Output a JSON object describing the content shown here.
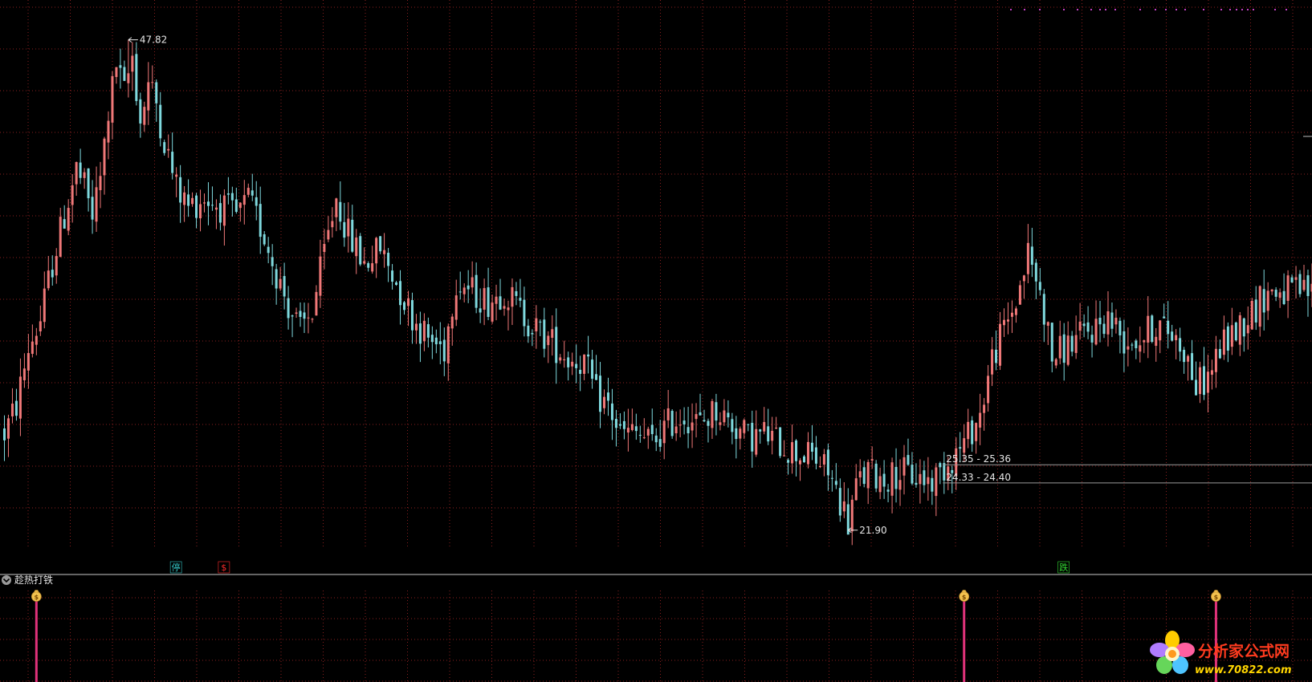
{
  "indicator": {
    "name": "趁热打铁"
  },
  "annotations": {
    "high_label": "47.82",
    "low_label": "21.90",
    "level_upper": "25.35 - 25.36",
    "level_lower": "24.33 - 24.40"
  },
  "signal_tags": [
    {
      "text": "停",
      "color": "#33c6c6",
      "index": 43
    },
    {
      "text": "$",
      "color": "#ff2b2b",
      "index": 55
    },
    {
      "text": "跌",
      "color": "#33dd33",
      "index": 265
    }
  ],
  "signal_icons": [
    "money-bag-icon",
    "money-bag-icon",
    "money-bag-icon"
  ],
  "watermark": {
    "name": "分析家公式网",
    "url": "www.70822.com"
  },
  "colors": {
    "up": "#f07878",
    "down": "#7fd9de",
    "grid": "#8a1f1f",
    "signal_line": "#e0327a",
    "annotation_line": "#9a9a9a"
  },
  "chart_data": {
    "type": "candlestick",
    "series_note": "",
    "ylim": [
      21.0,
      49.5
    ],
    "start": 27.2,
    "anchors": [
      [
        0,
        27.0
      ],
      [
        3,
        28.5
      ],
      [
        6,
        31.5
      ],
      [
        9,
        33.0
      ],
      [
        12,
        36.0
      ],
      [
        15,
        38.5
      ],
      [
        18,
        41.0
      ],
      [
        20,
        40.0
      ],
      [
        22,
        38.5
      ],
      [
        24,
        40.5
      ],
      [
        26,
        44.0
      ],
      [
        28,
        46.5
      ],
      [
        30,
        45.0
      ],
      [
        32,
        47.0
      ],
      [
        34,
        43.5
      ],
      [
        36,
        45.5
      ],
      [
        38,
        44.5
      ],
      [
        40,
        42.5
      ],
      [
        43,
        40.0
      ],
      [
        46,
        39.0
      ],
      [
        50,
        39.5
      ],
      [
        54,
        39.0
      ],
      [
        58,
        38.5
      ],
      [
        61,
        39.3
      ],
      [
        65,
        37.5
      ],
      [
        68,
        35.5
      ],
      [
        71,
        33.8
      ],
      [
        74,
        32.4
      ],
      [
        77,
        33.5
      ],
      [
        80,
        36.5
      ],
      [
        83,
        39.5
      ],
      [
        86,
        37.5
      ],
      [
        90,
        36.0
      ],
      [
        94,
        36.8
      ],
      [
        98,
        35.0
      ],
      [
        102,
        33.2
      ],
      [
        106,
        32.0
      ],
      [
        110,
        31.5
      ],
      [
        113,
        35.2
      ],
      [
        117,
        34.5
      ],
      [
        121,
        34.0
      ],
      [
        125,
        34.6
      ],
      [
        129,
        33.5
      ],
      [
        133,
        32.5
      ],
      [
        137,
        31.8
      ],
      [
        141,
        31.0
      ],
      [
        145,
        30.8
      ],
      [
        148,
        29.0
      ],
      [
        151,
        28.5
      ],
      [
        154,
        27.0
      ],
      [
        158,
        27.0
      ],
      [
        162,
        26.5
      ],
      [
        166,
        27.5
      ],
      [
        170,
        28.0
      ],
      [
        174,
        27.5
      ],
      [
        178,
        28.3
      ],
      [
        182,
        27.5
      ],
      [
        186,
        26.8
      ],
      [
        190,
        27.0
      ],
      [
        194,
        26.5
      ],
      [
        198,
        26.0
      ],
      [
        202,
        25.8
      ],
      [
        206,
        25.0
      ],
      [
        209,
        23.5
      ],
      [
        211,
        22.3
      ],
      [
        213,
        24.2
      ],
      [
        216,
        25.0
      ],
      [
        220,
        24.6
      ],
      [
        224,
        25.0
      ],
      [
        228,
        24.7
      ],
      [
        232,
        24.5
      ],
      [
        236,
        25.5
      ],
      [
        240,
        26.5
      ],
      [
        244,
        28.0
      ],
      [
        247,
        31.0
      ],
      [
        250,
        32.5
      ],
      [
        253,
        34.0
      ],
      [
        256,
        36.5
      ],
      [
        258,
        35.2
      ],
      [
        260,
        33.5
      ],
      [
        262,
        31.0
      ],
      [
        265,
        31.5
      ],
      [
        268,
        32.0
      ],
      [
        272,
        32.5
      ],
      [
        276,
        33.2
      ],
      [
        280,
        32.0
      ],
      [
        284,
        32.0
      ],
      [
        288,
        32.8
      ],
      [
        292,
        32.3
      ],
      [
        295,
        31.5
      ],
      [
        298,
        29.5
      ],
      [
        301,
        30.0
      ],
      [
        304,
        31.5
      ],
      [
        308,
        32.5
      ],
      [
        312,
        33.5
      ],
      [
        316,
        34.5
      ]
    ],
    "extremes": [
      {
        "index": 31,
        "value": 47.82,
        "kind": "high"
      },
      {
        "index": 211,
        "value": 21.9,
        "kind": "low"
      }
    ],
    "levels": [
      {
        "label": "25.35 - 25.36",
        "value": 25.36,
        "from_index": 235
      },
      {
        "label": "24.33 - 24.40",
        "value": 24.4,
        "from_index": 235
      }
    ],
    "signals": {
      "indices": [
        8,
        240,
        303
      ],
      "type": "buy-marker"
    }
  }
}
